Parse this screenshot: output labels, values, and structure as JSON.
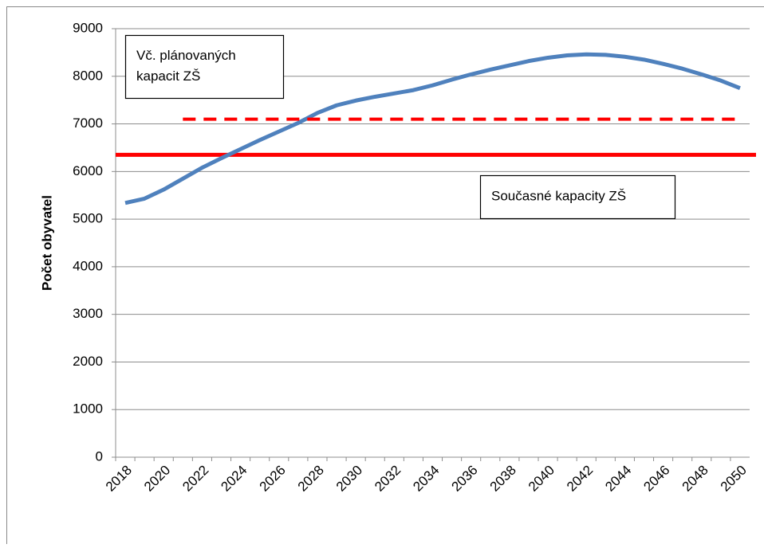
{
  "chart_data": {
    "type": "line",
    "y_label": "Počet obyvatel",
    "categories": [
      "2018",
      null,
      "2020",
      null,
      "2022",
      null,
      "2024",
      null,
      "2026",
      null,
      "2028",
      null,
      "2030",
      null,
      "2032",
      null,
      "2034",
      null,
      "2036",
      null,
      "2038",
      null,
      "2040",
      null,
      "2042",
      null,
      "2044",
      null,
      "2046",
      null,
      "2048",
      null,
      "2050"
    ],
    "series": [
      {
        "color": "#4f81bd",
        "style": "solid",
        "values": [
          5340,
          5430,
          5620,
          5850,
          6080,
          6280,
          6470,
          6660,
          6840,
          7020,
          7230,
          7390,
          7490,
          7570,
          7640,
          7710,
          7810,
          7930,
          8040,
          8140,
          8230,
          8320,
          8390,
          8440,
          8460,
          8450,
          8410,
          8350,
          8260,
          8160,
          8040,
          7910,
          7750
        ]
      },
      {
        "color": "#ff0000",
        "style": "dashed",
        "values": [
          null,
          null,
          null,
          7100,
          7100,
          7100,
          7100,
          7100,
          7100,
          7100,
          7100,
          7100,
          7100,
          7100,
          7100,
          7100,
          7100,
          7100,
          7100,
          7100,
          7100,
          7100,
          7100,
          7100,
          7100,
          7100,
          7100,
          7100,
          7100,
          7100,
          7100,
          7100,
          7100
        ]
      }
    ],
    "hlines": [
      {
        "value": 6350,
        "color": "#ff0000"
      }
    ],
    "annotations": [
      {
        "lines": [
          "Vč. plánovaných",
          "kapacit ZŠ"
        ]
      },
      {
        "lines": [
          "Současné kapacity ZŠ"
        ]
      }
    ],
    "ylim": [
      0,
      9000
    ],
    "yticks": [
      0,
      1000,
      2000,
      3000,
      4000,
      5000,
      6000,
      7000,
      8000,
      9000
    ],
    "grid": true
  }
}
